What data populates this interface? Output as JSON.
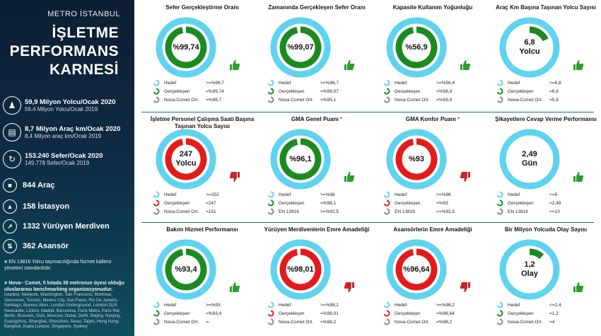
{
  "sidebar": {
    "brand": "METRO İSTANBUL",
    "title_lines": [
      "İŞLETME",
      "PERFORMANS",
      "KARNESİ"
    ],
    "stats": [
      {
        "icon": "passengers-icon",
        "main": "59,9 Milyon Yolcu/Ocak 2020",
        "sub": "56,4 Milyon Yolcu/Ocak 2019"
      },
      {
        "icon": "train-icon",
        "main": "8,7 Milyon Araç km/Ocak 2020",
        "sub": "8,4 Milyon araç km/Ocak 2019"
      },
      {
        "icon": "route-icon",
        "main": "153.240 Sefer/Ocak 2020",
        "sub": "149.778 Sefer/Ocak 2019"
      }
    ],
    "counts": [
      {
        "icon": "vehicle-icon",
        "label": "844 Araç"
      },
      {
        "icon": "station-icon",
        "label": "158 İstasyon"
      },
      {
        "icon": "escalator-icon",
        "label": "1332 Yürüyen Merdiven"
      },
      {
        "icon": "elevator-icon",
        "label": "362 Asansör"
      }
    ],
    "note1": "EN 13816 Yolcu taşımacılığında hizmet kalitesi yönetimi standardıdır.",
    "note2_bold": "Nova– Comet, 5 kıtada 38 metronun üyesi olduğu uluslararası benchmarking organizasyonudur.",
    "note2_list": "İstanbul, Newyork, Washington, San Francisco, Montreal, Vancouver, Toronto, Mexico City, Sao Paulo, Rio De Janeiro, Santiago, Buenos Aires, Londan Underground, London DLR, Newcastle, Lizbon, Madrid, Barcelona, Paris Metro, Paris Rer, Berlin, Brussels, Oslo, Moscow, Dubai, Delhi, Beijing, Nanjing, Guangzhou, Shanghai, Shenzhen, Seoul, Taipei, Hong Kong, Bangkok, Kuala Lumpur, Singapore, Sydney"
  },
  "panels": [
    {
      "title": "Sefer Gerçekleştirme Oranı",
      "star": false,
      "value_text": [
        "%99,74"
      ],
      "fill_fraction": 0.975,
      "ring": "green",
      "ring_color": "#1b8a1f",
      "thumb": "thumbs-up",
      "legend": [
        {
          "label": "Hedef",
          "value": ">=%98,7"
        },
        {
          "label": "Gerçekleşen",
          "value": "=%99,74"
        },
        {
          "label": "Nova-Comet Ort.",
          "value": "=%98,7"
        }
      ]
    },
    {
      "title": "Zamanında Gerçekleşen Sefer Oranı",
      "star": false,
      "value_text": [
        "%99,07"
      ],
      "fill_fraction": 0.975,
      "ring": "green",
      "ring_color": "#1b8a1f",
      "thumb": "thumbs-up",
      "legend": [
        {
          "label": "Hedef",
          "value": ">=%98,7"
        },
        {
          "label": "Gerçekleşen",
          "value": "=%99,07"
        },
        {
          "label": "Nova-Comet Ort.",
          "value": "=%95,1"
        }
      ]
    },
    {
      "title": "Kapasite Kullanım Yoğunluğu",
      "star": false,
      "value_text": [
        "%56,9"
      ],
      "fill_fraction": 0.569,
      "ring": "green",
      "ring_color": "#1b8a1f",
      "thumb": "thumbs-up",
      "legend": [
        {
          "label": "Hedef",
          "value": ">=%56,4"
        },
        {
          "label": "Gerçekleşen",
          "value": "=%56,9"
        },
        {
          "label": "Nova-Comet Ort.",
          "value": "=%69,9"
        }
      ]
    },
    {
      "title": "Araç Km Başına Taşınan Yolcu Sayısı",
      "star": false,
      "value_text": [
        "6,8",
        "Yolcu"
      ],
      "fill_fraction": 0.18,
      "ring": "green",
      "ring_color": "#1b8a1f",
      "thumb": "thumbs-up",
      "legend": [
        {
          "label": "Hedef",
          "value": ">=6,8"
        },
        {
          "label": "Gerçekleşen",
          "value": "=6,8"
        },
        {
          "label": "Nova-Comet Ort.",
          "value": "=5,9"
        }
      ]
    },
    {
      "title": "İşletme Personel Çalışma Saati Başına Taşınan Yolcu Sayısı",
      "star": false,
      "value_text": [
        "247",
        "Yolcu"
      ],
      "fill_fraction": 0.9,
      "ring": "red",
      "ring_color": "#e31b1b",
      "thumb": "thumbs-down",
      "legend": [
        {
          "label": "Hedef",
          "value": ">=252"
        },
        {
          "label": "Gerçekleşen",
          "value": "=247"
        },
        {
          "label": "Nova-Comet Ort.",
          "value": "=151"
        }
      ]
    },
    {
      "title": "GMA Genel Puanı",
      "star": true,
      "value_text": [
        "%96,1"
      ],
      "fill_fraction": 0.961,
      "ring": "green",
      "ring_color": "#1b8a1f",
      "thumb": "thumbs-up",
      "legend": [
        {
          "label": "Hedef",
          "value": ">=%96"
        },
        {
          "label": "Gerçekleşen",
          "value": "=%96,1"
        },
        {
          "label": "EN 13816",
          "value": ">=%92,5"
        }
      ]
    },
    {
      "title": "GMA Konfor Puanı",
      "star": true,
      "value_text": [
        "%93"
      ],
      "fill_fraction": 0.93,
      "ring": "red",
      "ring_color": "#e31b1b",
      "thumb": "thumbs-down",
      "legend": [
        {
          "label": "Hedef",
          "value": ">=%96"
        },
        {
          "label": "Gerçekleşen",
          "value": "=%93"
        },
        {
          "label": "EN 13816",
          "value": ">=%92,5"
        }
      ]
    },
    {
      "title": "Şikayetlere Cevap Verme Performansı",
      "star": false,
      "value_text": [
        "2,49",
        "Gün"
      ],
      "fill_fraction": 0.0,
      "ring": "cyan",
      "ring_color": "#1b8a1f",
      "thumb": "thumbs-up",
      "legend": [
        {
          "label": "Hedef",
          "value": "<=5"
        },
        {
          "label": "Gerçekleşen",
          "value": "=2,49"
        },
        {
          "label": "EN 13816",
          "value": "<=10"
        }
      ]
    },
    {
      "title": "Bakım Hizmet Performansı",
      "star": false,
      "value_text": [
        "%93,4"
      ],
      "fill_fraction": 0.934,
      "ring": "green",
      "ring_color": "#1b8a1f",
      "thumb": "thumbs-up",
      "legend": [
        {
          "label": "Hedef",
          "value": ">=%93"
        },
        {
          "label": "Gerçekleşen",
          "value": "=%93,4"
        },
        {
          "label": "Nova-Comet Ort.",
          "value": "=-"
        }
      ]
    },
    {
      "title": "Yürüyen Merdivenlerin Emre Amadeliği",
      "star": false,
      "value_text": [
        "%98,01"
      ],
      "fill_fraction": 0.975,
      "ring": "red",
      "ring_color": "#e31b1b",
      "thumb": "thumbs-down",
      "legend": [
        {
          "label": "Hedef",
          "value": ">=%98,2"
        },
        {
          "label": "Gerçekleşen",
          "value": "=%98,01"
        },
        {
          "label": "Nova-Comet Ort.",
          "value": "=%98,2"
        }
      ]
    },
    {
      "title": "Asansörlerin Emre Amadeliği",
      "star": false,
      "value_text": [
        "%96,64"
      ],
      "fill_fraction": 0.966,
      "ring": "red",
      "ring_color": "#e31b1b",
      "thumb": "thumbs-down",
      "legend": [
        {
          "label": "Hedef",
          "value": ">=%98,2"
        },
        {
          "label": "Gerçekleşen",
          "value": "=%96,64"
        },
        {
          "label": "Nova-Comet Ort.",
          "value": "=%98,2"
        }
      ]
    },
    {
      "title": "Bir Milyon Yolcuda Olay Sayısı",
      "star": false,
      "value_text": [
        "1,2",
        "Olay"
      ],
      "fill_fraction": 0.12,
      "ring": "green",
      "ring_color": "#1b8a1f",
      "thumb": "thumbs-up",
      "legend": [
        {
          "label": "Hedef",
          "value": "<=2,4"
        },
        {
          "label": "Gerçekleşen",
          "value": "=1,2"
        },
        {
          "label": "Nova-Comet Ort.",
          "value": "=4"
        }
      ]
    }
  ],
  "colors": {
    "cyan": "#5fd3ef",
    "green": "#1b8a1f",
    "red": "#e31b1b",
    "thumb_up": "#2e9e2e",
    "thumb_down": "#c62828",
    "separator": "#2d5fa0"
  }
}
